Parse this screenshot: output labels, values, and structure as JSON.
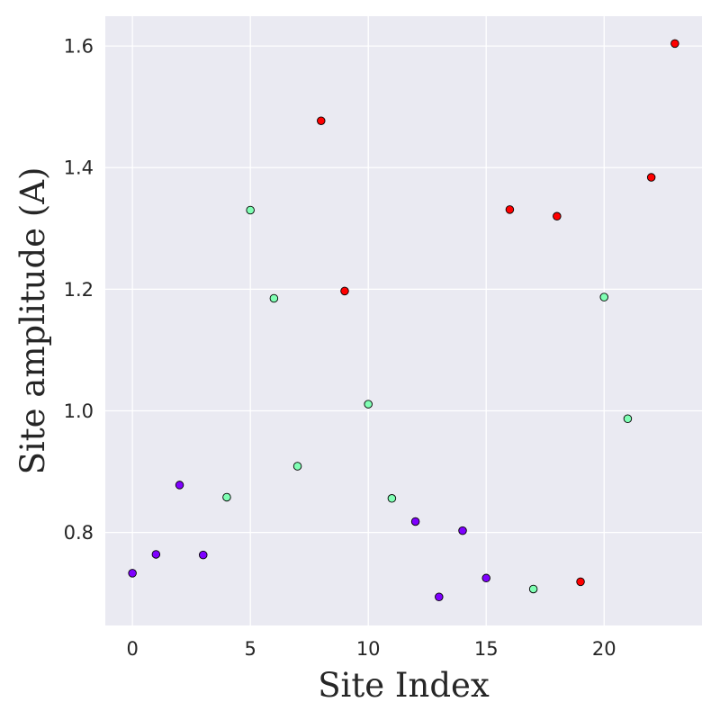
{
  "chart_data": {
    "type": "scatter",
    "title": "",
    "xlabel": "Site Index",
    "ylabel": "Site amplitude (A)",
    "xlim": [
      -1.15,
      24.15
    ],
    "ylim": [
      0.647,
      1.649
    ],
    "xticks": [
      0,
      5,
      10,
      15,
      20
    ],
    "xtick_labels": [
      "0",
      "5",
      "10",
      "15",
      "20"
    ],
    "yticks": [
      0.8,
      1.0,
      1.2,
      1.4,
      1.6
    ],
    "ytick_labels": [
      "0.8",
      "1.0",
      "1.2",
      "1.4",
      "1.6"
    ],
    "grid": true,
    "legend": "none",
    "points": [
      {
        "x": 0,
        "y": 0.733,
        "group": 0
      },
      {
        "x": 1,
        "y": 0.764,
        "group": 0
      },
      {
        "x": 2,
        "y": 0.878,
        "group": 0
      },
      {
        "x": 3,
        "y": 0.763,
        "group": 0
      },
      {
        "x": 4,
        "y": 0.858,
        "group": 1
      },
      {
        "x": 5,
        "y": 1.33,
        "group": 1
      },
      {
        "x": 6,
        "y": 1.185,
        "group": 1
      },
      {
        "x": 7,
        "y": 0.909,
        "group": 1
      },
      {
        "x": 8,
        "y": 1.477,
        "group": 2
      },
      {
        "x": 9,
        "y": 1.197,
        "group": 2
      },
      {
        "x": 10,
        "y": 1.011,
        "group": 1
      },
      {
        "x": 11,
        "y": 0.856,
        "group": 1
      },
      {
        "x": 12,
        "y": 0.818,
        "group": 0
      },
      {
        "x": 13,
        "y": 0.694,
        "group": 0
      },
      {
        "x": 14,
        "y": 0.803,
        "group": 0
      },
      {
        "x": 15,
        "y": 0.725,
        "group": 0
      },
      {
        "x": 16,
        "y": 1.331,
        "group": 2
      },
      {
        "x": 17,
        "y": 0.707,
        "group": 1
      },
      {
        "x": 18,
        "y": 1.32,
        "group": 2
      },
      {
        "x": 19,
        "y": 0.719,
        "group": 2
      },
      {
        "x": 20,
        "y": 1.187,
        "group": 1
      },
      {
        "x": 21,
        "y": 0.987,
        "group": 1
      },
      {
        "x": 22,
        "y": 1.384,
        "group": 2
      },
      {
        "x": 23,
        "y": 1.604,
        "group": 2
      }
    ],
    "group_colors": [
      "#7f00ff",
      "#80ffb4",
      "#ff0000"
    ],
    "colors": {
      "plot_background": "#eaeaf2",
      "grid": "#ffffff",
      "marker_edge": "#000000",
      "text": "#262626"
    }
  }
}
